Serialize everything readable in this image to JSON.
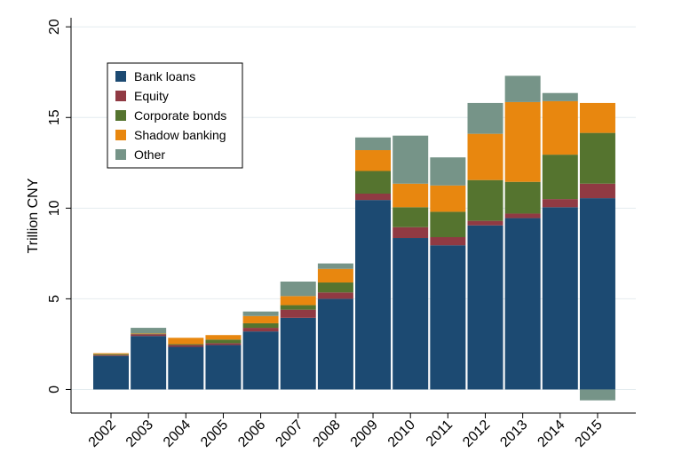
{
  "chart_data": {
    "type": "bar",
    "stacked": true,
    "categories": [
      "2002",
      "2003",
      "2004",
      "2005",
      "2006",
      "2007",
      "2008",
      "2009",
      "2010",
      "2011",
      "2012",
      "2013",
      "2014",
      "2015"
    ],
    "series": [
      {
        "name": "Bank loans",
        "color": "#1c4a72",
        "values": [
          1.85,
          2.95,
          2.35,
          2.45,
          3.2,
          3.95,
          5.0,
          10.45,
          8.35,
          7.95,
          9.05,
          9.45,
          10.05,
          10.55
        ]
      },
      {
        "name": "Equity",
        "color": "#903a43",
        "values": [
          0.05,
          0.1,
          0.1,
          0.1,
          0.2,
          0.45,
          0.35,
          0.35,
          0.6,
          0.45,
          0.25,
          0.25,
          0.45,
          0.8
        ]
      },
      {
        "name": "Corporate bonds",
        "color": "#55742f",
        "values": [
          0.05,
          0.03,
          0.05,
          0.2,
          0.25,
          0.25,
          0.55,
          1.25,
          1.1,
          1.4,
          2.25,
          1.75,
          2.45,
          2.8
        ]
      },
      {
        "name": "Shadow banking",
        "color": "#e8870f",
        "values": [
          0.05,
          0.02,
          0.35,
          0.25,
          0.4,
          0.5,
          0.75,
          1.15,
          1.3,
          1.45,
          2.55,
          4.4,
          2.95,
          1.65
        ]
      },
      {
        "name": "Other",
        "color": "#769488",
        "values": [
          0.0,
          0.3,
          0.0,
          0.0,
          0.25,
          0.8,
          0.3,
          0.7,
          2.65,
          1.55,
          1.7,
          1.45,
          0.45,
          -0.6
        ]
      }
    ],
    "ylabel": "Trillion CNY",
    "ylim": [
      -1.3,
      20.5
    ],
    "yticks": [
      "0",
      "5",
      "10",
      "15",
      "20"
    ],
    "legend_position": "top-left, inside",
    "grid": true
  }
}
